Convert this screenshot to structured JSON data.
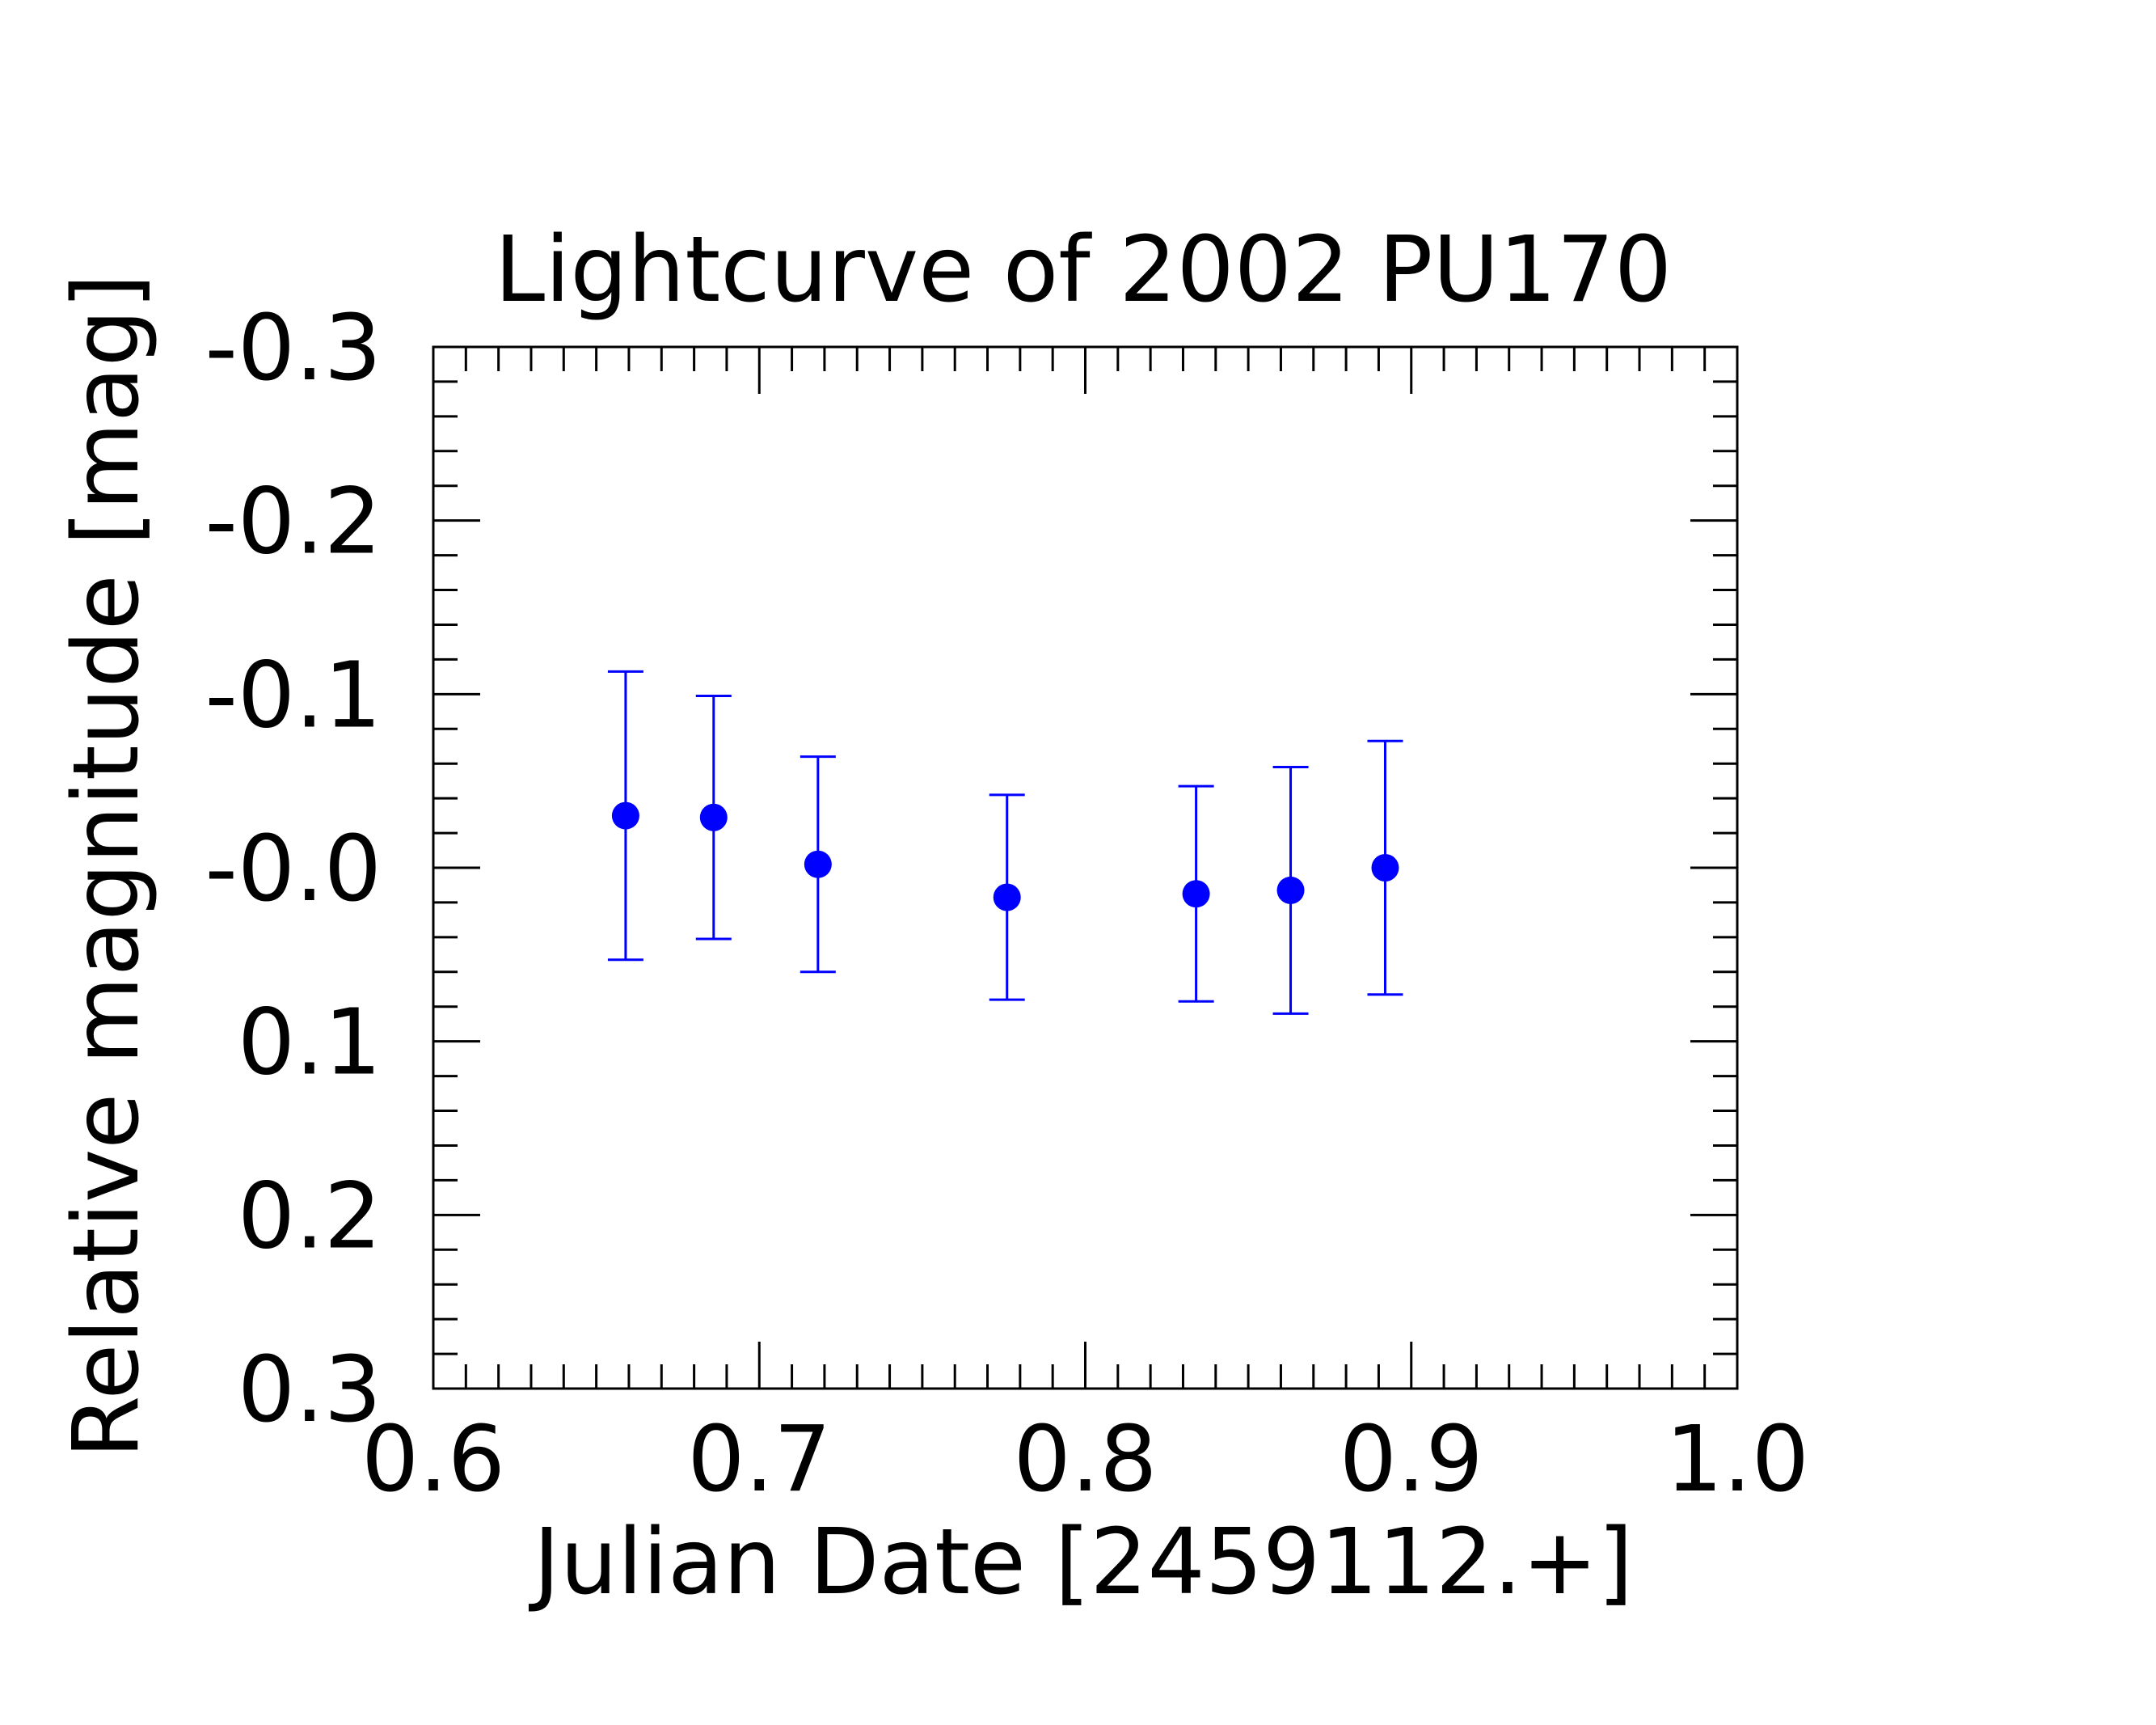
{
  "chart_data": {
    "type": "scatter",
    "title": "Lightcurve of 2002 PU170",
    "xlabel": "Julian Date [2459112.+]",
    "ylabel": "Relative magnitude [mag]",
    "xlim": [
      0.6,
      1.0
    ],
    "ylim": [
      0.3,
      -0.3
    ],
    "y_axis_inverted": true,
    "grid": false,
    "x_ticks": [
      "0.6",
      "0.7",
      "0.8",
      "0.9",
      "1.0"
    ],
    "y_ticks": [
      "-0.3",
      "-0.2",
      "-0.1",
      "-0.0",
      "0.1",
      "0.2",
      "0.3"
    ],
    "series": [
      {
        "color": "#0000ff",
        "marker": "circle",
        "error_bars": true,
        "points": [
          {
            "x": 0.659,
            "y": -0.03,
            "err": 0.083
          },
          {
            "x": 0.686,
            "y": -0.029,
            "err": 0.07
          },
          {
            "x": 0.718,
            "y": -0.002,
            "err": 0.062
          },
          {
            "x": 0.776,
            "y": 0.017,
            "err": 0.059
          },
          {
            "x": 0.834,
            "y": 0.015,
            "err": 0.062
          },
          {
            "x": 0.863,
            "y": 0.013,
            "err": 0.071
          },
          {
            "x": 0.892,
            "y": 0.0,
            "err": 0.073
          }
        ]
      }
    ]
  }
}
